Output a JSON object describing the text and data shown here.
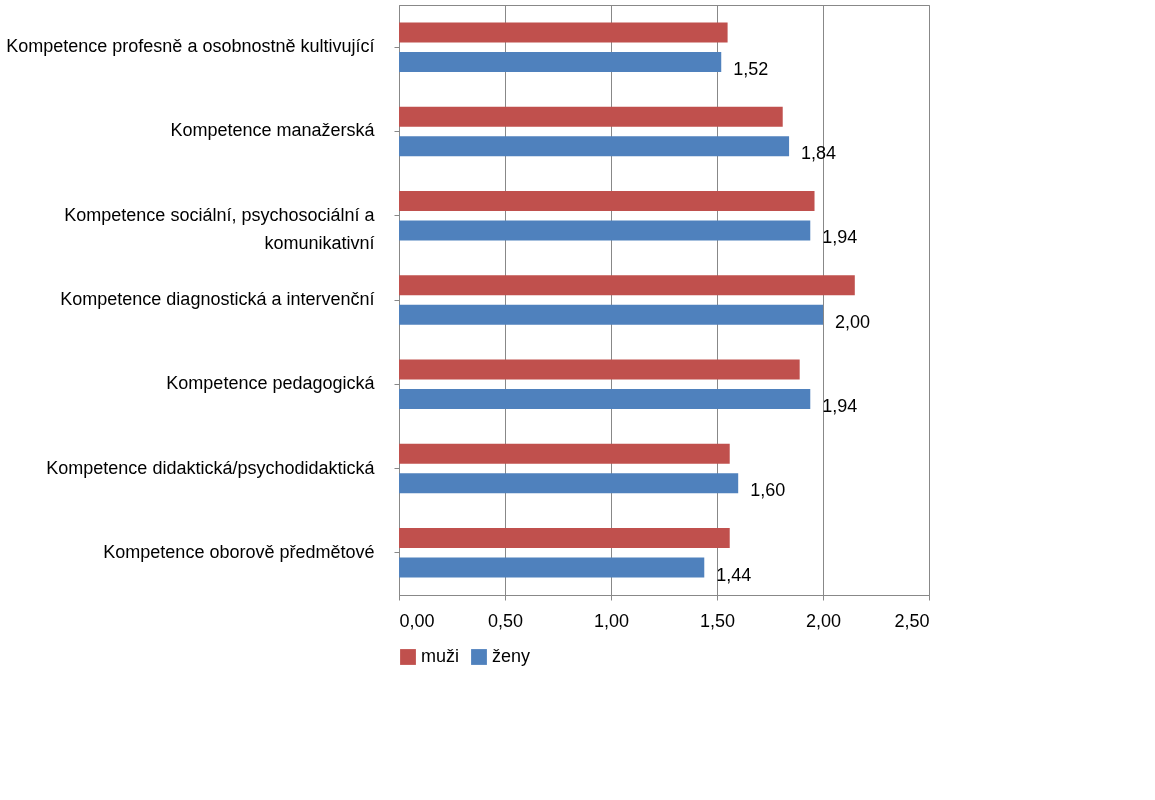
{
  "chart_data": {
    "type": "bar",
    "orientation": "horizontal",
    "categories": [
      "Kompetence profesně a osobnostně kultivující",
      "Kompetence manažerská",
      "Kompetence sociální, psychosociální a\nkomunikativní",
      "Kompetence diagnostická a intervenční",
      "Kompetence pedagogická",
      "Kompetence didaktická/psychodidaktická",
      "Kompetence oborově předmětové"
    ],
    "series": [
      {
        "name": "muži",
        "color": "#c0504d",
        "values": [
          1.55,
          1.81,
          1.96,
          2.15,
          1.89,
          1.56,
          1.56
        ]
      },
      {
        "name": "ženy",
        "color": "#4f81bd",
        "values": [
          1.52,
          1.84,
          1.94,
          2.0,
          1.94,
          1.6,
          1.44
        ],
        "value_labels": [
          "1,52",
          "1,84",
          "1,94",
          "2,00",
          "1,94",
          "1,60",
          "1,44"
        ]
      }
    ],
    "xlim": [
      0,
      2.5
    ],
    "xticks": [
      {
        "value": 0,
        "label": "0,00"
      },
      {
        "value": 0.5,
        "label": "0,50"
      },
      {
        "value": 1,
        "label": "1,00"
      },
      {
        "value": 1.5,
        "label": "1,50"
      },
      {
        "value": 2,
        "label": "2,00"
      },
      {
        "value": 2.5,
        "label": "2,50"
      }
    ],
    "grid": "x",
    "legend": "bottom"
  }
}
